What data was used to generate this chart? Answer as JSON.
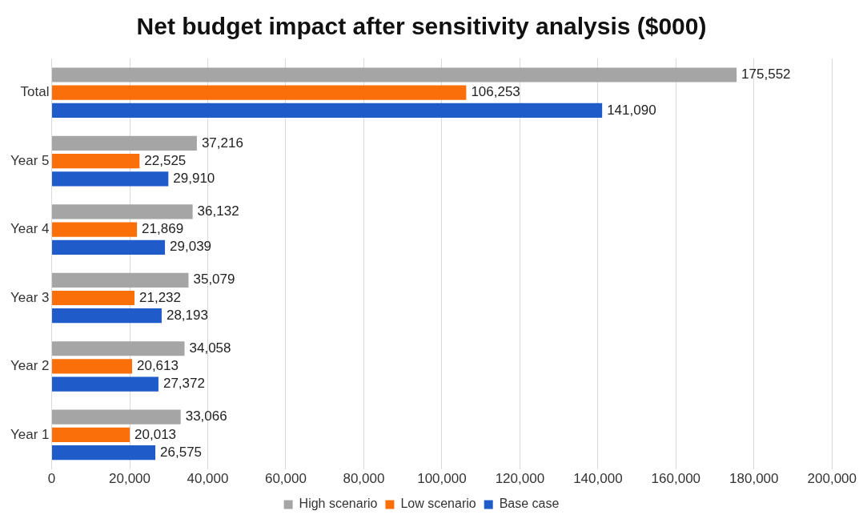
{
  "chart_data": {
    "type": "bar",
    "orientation": "horizontal",
    "title": "Net budget impact after sensitivity analysis ($000)",
    "categories": [
      "Total",
      "Year 5",
      "Year 4",
      "Year 3",
      "Year 2",
      "Year 1"
    ],
    "series": [
      {
        "name": "High scenario",
        "color": "#a5a5a5",
        "values": [
          175552,
          37216,
          36132,
          35079,
          34058,
          33066
        ],
        "value_labels": [
          "175,552",
          "37,216",
          "36,132",
          "35,079",
          "34,058",
          "33,066"
        ]
      },
      {
        "name": "Low scenario",
        "color": "#fb6f0a",
        "values": [
          106253,
          22525,
          21869,
          21232,
          20613,
          20013
        ],
        "value_labels": [
          "106,253",
          "22,525",
          "21,869",
          "21,232",
          "20,613",
          "20,013"
        ]
      },
      {
        "name": "Base case",
        "color": "#1f5cc9",
        "values": [
          141090,
          29910,
          29039,
          28193,
          27372,
          26575
        ],
        "value_labels": [
          "141,090",
          "29,910",
          "29,039",
          "28,193",
          "27,372",
          "26,575"
        ]
      }
    ],
    "xlim": [
      0,
      200000
    ],
    "xticks": [
      0,
      {
        "value": 20000,
        "label": "20,000"
      },
      {
        "value": 40000,
        "label": "40,000"
      },
      {
        "value": 60000,
        "label": "60,000"
      },
      {
        "value": 80000,
        "label": "80,000"
      },
      {
        "value": 100000,
        "label": "100,000"
      },
      {
        "value": 120000,
        "label": "120,000"
      },
      {
        "value": 140000,
        "label": "140,000"
      },
      {
        "value": 160000,
        "label": "160,000"
      },
      {
        "value": 180000,
        "label": "180,000"
      },
      {
        "value": 200000,
        "label": "200,000"
      }
    ],
    "grid": "x",
    "legend": "bottom"
  }
}
